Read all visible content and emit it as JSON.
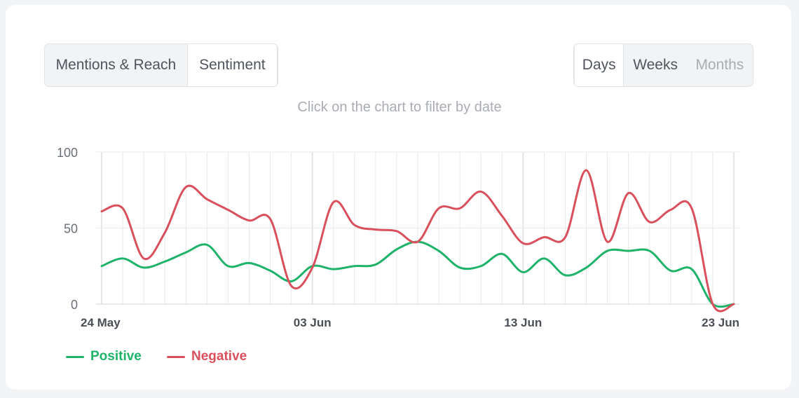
{
  "tabs": {
    "metric": [
      {
        "label": "Mentions & Reach",
        "active": false
      },
      {
        "label": "Sentiment",
        "active": true
      }
    ],
    "period": [
      {
        "label": "Days",
        "active": true
      },
      {
        "label": "Weeks",
        "active": false
      },
      {
        "label": "Months",
        "active": false,
        "disabled": true
      }
    ]
  },
  "hint": "Click on the chart to filter by date",
  "colors": {
    "positive": "#1fb36a",
    "negative": "#d9505c",
    "grid": "#e8e9ec"
  },
  "chart_data": {
    "type": "line",
    "x": [
      "2023-05-24",
      "2023-05-25",
      "2023-05-26",
      "2023-05-27",
      "2023-05-28",
      "2023-05-29",
      "2023-05-30",
      "2023-05-31",
      "2023-06-01",
      "2023-06-02",
      "2023-06-03",
      "2023-06-04",
      "2023-06-05",
      "2023-06-06",
      "2023-06-07",
      "2023-06-08",
      "2023-06-09",
      "2023-06-10",
      "2023-06-11",
      "2023-06-12",
      "2023-06-13",
      "2023-06-14",
      "2023-06-15",
      "2023-06-16",
      "2023-06-17",
      "2023-06-18",
      "2023-06-19",
      "2023-06-20",
      "2023-06-21",
      "2023-06-22",
      "2023-06-23"
    ],
    "x_tick_labels": [
      {
        "index": 0,
        "label": "24 May"
      },
      {
        "index": 10,
        "label": "03 Jun"
      },
      {
        "index": 20,
        "label": "13 Jun"
      },
      {
        "index": 30,
        "label": "23 Jun"
      }
    ],
    "y_ticks": [
      0,
      50,
      100
    ],
    "ylim": [
      0,
      100
    ],
    "grid": true,
    "legend": "bottom-left",
    "series": [
      {
        "name": "Positive",
        "values": [
          25,
          30,
          24,
          28,
          34,
          39,
          25,
          27,
          22,
          15,
          25,
          23,
          25,
          26,
          36,
          41,
          35,
          24,
          25,
          33,
          21,
          30,
          19,
          24,
          35,
          35,
          35,
          22,
          23,
          0,
          0
        ]
      },
      {
        "name": "Negative",
        "values": [
          61,
          63,
          30,
          47,
          77,
          69,
          62,
          55,
          56,
          12,
          24,
          67,
          52,
          49,
          48,
          41,
          63,
          63,
          74,
          58,
          40,
          44,
          44,
          88,
          41,
          73,
          54,
          62,
          63,
          0,
          0
        ]
      }
    ]
  }
}
